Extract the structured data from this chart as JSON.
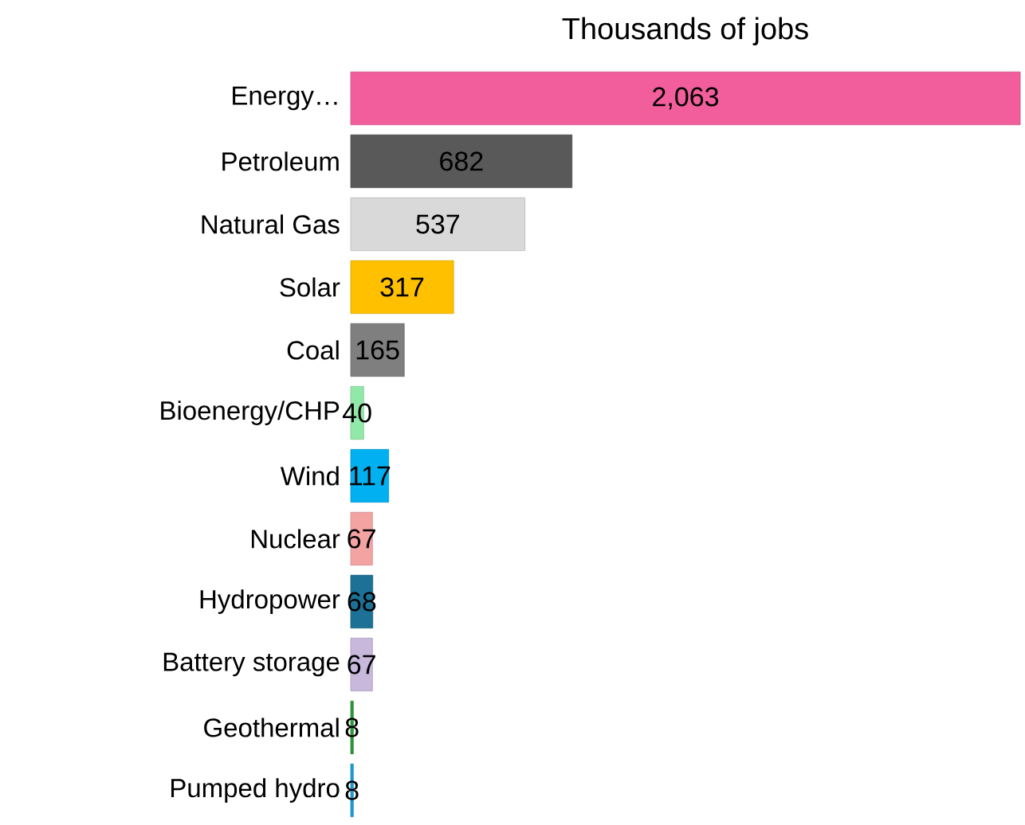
{
  "chart_data": {
    "type": "bar",
    "orientation": "horizontal",
    "title": "Thousands of jobs",
    "categories": [
      "Energy…",
      "Petroleum",
      "Natural Gas",
      "Solar",
      "Coal",
      "Bioenergy/CHP",
      "Wind",
      "Nuclear",
      "Hydropower",
      "Battery storage",
      "Geothermal",
      "Pumped hydro"
    ],
    "values": [
      2063,
      682,
      537,
      317,
      165,
      40,
      117,
      67,
      68,
      67,
      8,
      8
    ],
    "value_labels": [
      "2,063",
      "682",
      "537",
      "317",
      "165",
      "40",
      "117",
      "67",
      "68",
      "67",
      "8",
      "8"
    ],
    "colors": [
      "#f25e9b",
      "#595959",
      "#d9d9d9",
      "#ffc000",
      "#7f7f7f",
      "#92e8a8",
      "#00b0f0",
      "#f4a3a3",
      "#1d7196",
      "#c7b8dc",
      "#2e9a3a",
      "#1b9fd6"
    ]
  }
}
